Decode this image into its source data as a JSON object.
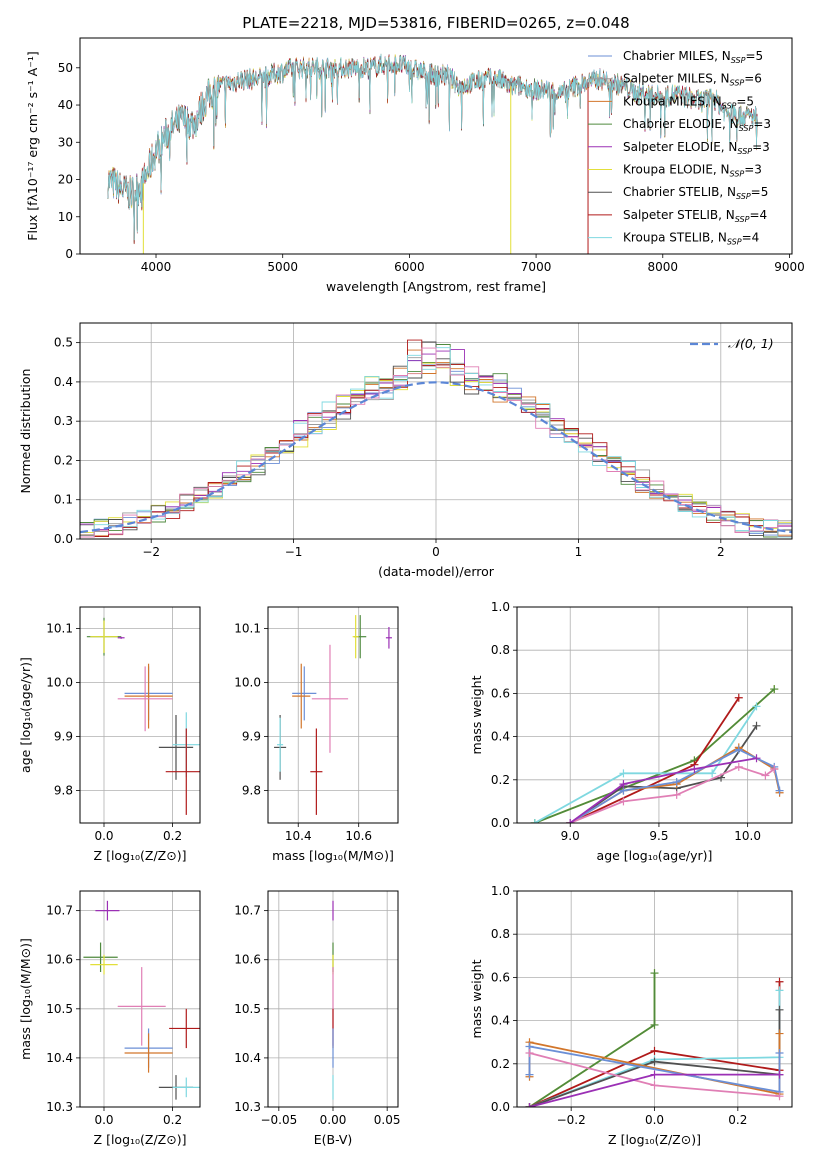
{
  "colors": {
    "chabrier_miles": "#6b8fd6",
    "salpeter_miles": "#9a9a9a",
    "kroupa_miles": "#d2762b",
    "chabrier_elodie": "#4f8a3e",
    "salpeter_elodie": "#9b30b5",
    "kroupa_elodie": "#e2df3a",
    "chabrier_stelib": "#505050",
    "salpeter_stelib": "#b01a1a",
    "kroupa_stelib": "#7fd8e0",
    "pink": "#e07fb5",
    "normal": "#5b86d6"
  },
  "chart_data": [
    {
      "id": "spectrum",
      "type": "line",
      "title": "PLATE=2218, MJD=53816, FIBERID=0265, z=0.048",
      "xlabel": "wavelength [Angstrom, rest frame]",
      "ylabel": "Flux [fλ10⁻¹⁷ erg cm⁻² s⁻¹ A⁻¹]",
      "xlim": [
        3400,
        9020
      ],
      "ylim": [
        0,
        58
      ],
      "xticks": [
        4000,
        5000,
        6000,
        7000,
        8000,
        9000
      ],
      "yticks": [
        0,
        10,
        20,
        30,
        40,
        50
      ],
      "legend_position": "upper right",
      "series": [
        {
          "name": "Chabrier MILES, N",
          "sub": "SSP",
          "n": "=5",
          "color_key": "chabrier_miles"
        },
        {
          "name": "Salpeter MILES, N",
          "sub": "SSP",
          "n": "=6",
          "color_key": "salpeter_miles"
        },
        {
          "name": "Kroupa MILES, N",
          "sub": "SSP",
          "n": "=5",
          "color_key": "kroupa_miles"
        },
        {
          "name": "Chabrier ELODIE, N",
          "sub": "SSP",
          "n": "=3",
          "color_key": "chabrier_elodie"
        },
        {
          "name": "Salpeter ELODIE, N",
          "sub": "SSP",
          "n": "=3",
          "color_key": "salpeter_elodie"
        },
        {
          "name": "Kroupa ELODIE, N",
          "sub": "SSP",
          "n": "=3",
          "color_key": "kroupa_elodie"
        },
        {
          "name": "Chabrier STELIB, N",
          "sub": "SSP",
          "n": "=5",
          "color_key": "chabrier_stelib"
        },
        {
          "name": "Salpeter STELIB, N",
          "sub": "SSP",
          "n": "=4",
          "color_key": "salpeter_stelib"
        },
        {
          "name": "Kroupa STELIB, N",
          "sub": "SSP",
          "n": "=4",
          "color_key": "kroupa_stelib"
        }
      ],
      "continuum": [
        [
          3620,
          20
        ],
        [
          3700,
          18
        ],
        [
          3800,
          16
        ],
        [
          3900,
          19
        ],
        [
          4000,
          28
        ],
        [
          4100,
          33
        ],
        [
          4200,
          36
        ],
        [
          4300,
          35
        ],
        [
          4400,
          42
        ],
        [
          4500,
          45
        ],
        [
          4600,
          46
        ],
        [
          4700,
          47
        ],
        [
          4800,
          47
        ],
        [
          4900,
          48
        ],
        [
          5000,
          49
        ],
        [
          5100,
          50
        ],
        [
          5200,
          50
        ],
        [
          5300,
          50
        ],
        [
          5400,
          50
        ],
        [
          5500,
          50
        ],
        [
          5600,
          50
        ],
        [
          5700,
          50
        ],
        [
          5800,
          51
        ],
        [
          5900,
          51
        ],
        [
          6000,
          50
        ],
        [
          6100,
          49
        ],
        [
          6200,
          48
        ],
        [
          6300,
          48
        ],
        [
          6400,
          45
        ],
        [
          6500,
          46
        ],
        [
          6600,
          47
        ],
        [
          6700,
          47
        ],
        [
          6800,
          45
        ],
        [
          6900,
          45
        ],
        [
          7000,
          44
        ],
        [
          7100,
          44
        ],
        [
          7200,
          43
        ],
        [
          7300,
          45
        ],
        [
          7400,
          46
        ],
        [
          7500,
          47
        ],
        [
          7600,
          46
        ],
        [
          7700,
          45
        ],
        [
          7800,
          43
        ],
        [
          7900,
          43
        ],
        [
          8000,
          42
        ],
        [
          8100,
          43
        ],
        [
          8200,
          42
        ],
        [
          8300,
          41
        ],
        [
          8400,
          42
        ],
        [
          8500,
          38
        ],
        [
          8600,
          37
        ],
        [
          8750,
          37
        ]
      ],
      "dropouts": [
        {
          "x": 3900,
          "color_key": "kroupa_elodie"
        },
        {
          "x": 6800,
          "color_key": "kroupa_elodie"
        },
        {
          "x": 7410,
          "color_key": "salpeter_stelib"
        }
      ]
    },
    {
      "id": "residuals",
      "type": "histogram",
      "xlabel": "(data-model)/error",
      "ylabel": "Normed distribution",
      "xlim": [
        -2.5,
        2.5
      ],
      "ylim": [
        0,
        0.55
      ],
      "xticks": [
        -2,
        -1,
        0,
        1,
        2
      ],
      "yticks": [
        0.0,
        0.1,
        0.2,
        0.3,
        0.4,
        0.5
      ],
      "reference": {
        "label": "𝒩(0, 1)",
        "mean": 0,
        "sigma": 1,
        "color_key": "normal"
      },
      "series_colors": [
        "chabrier_miles",
        "salpeter_miles",
        "kroupa_miles",
        "chabrier_elodie",
        "salpeter_elodie",
        "kroupa_elodie",
        "chabrier_stelib",
        "salpeter_stelib",
        "kroupa_stelib",
        "pink"
      ]
    },
    {
      "id": "age_vs_z",
      "type": "errorbar",
      "xlabel": "Z [log₁₀(Z/Z⊙)]",
      "ylabel": "age  [log₁₀(age/yr)]",
      "xlim": [
        -0.07,
        0.28
      ],
      "ylim": [
        9.74,
        10.14
      ],
      "xticks": [
        0.0,
        0.2
      ],
      "yticks": [
        9.8,
        9.9,
        10.0,
        10.1
      ],
      "points": [
        {
          "x": 0.0,
          "y": 10.085,
          "xe": 0.05,
          "ye": 0.035,
          "color_key": "chabrier_elodie"
        },
        {
          "x": 0.0,
          "y": 10.085,
          "xe": 0.04,
          "ye": 0.03,
          "color_key": "kroupa_elodie"
        },
        {
          "x": 0.05,
          "y": 10.083,
          "xe": 0.01,
          "ye": 0.002,
          "color_key": "salpeter_elodie"
        },
        {
          "x": 0.13,
          "y": 9.98,
          "xe": 0.07,
          "ye": 0.05,
          "color_key": "chabrier_miles"
        },
        {
          "x": 0.13,
          "y": 9.975,
          "xe": 0.07,
          "ye": 0.06,
          "color_key": "kroupa_miles"
        },
        {
          "x": 0.12,
          "y": 9.97,
          "xe": 0.08,
          "ye": 0.06,
          "color_key": "pink"
        },
        {
          "x": 0.21,
          "y": 9.88,
          "xe": 0.05,
          "ye": 0.06,
          "color_key": "chabrier_stelib"
        },
        {
          "x": 0.24,
          "y": 9.885,
          "xe": 0.04,
          "ye": 0.06,
          "color_key": "kroupa_stelib"
        },
        {
          "x": 0.24,
          "y": 9.835,
          "xe": 0.06,
          "ye": 0.08,
          "color_key": "salpeter_stelib"
        }
      ]
    },
    {
      "id": "age_vs_mass",
      "type": "errorbar",
      "xlabel": "mass [log₁₀(M/M⊙)]",
      "ylabel": "",
      "xlim": [
        10.3,
        10.73
      ],
      "ylim": [
        9.74,
        10.14
      ],
      "xticks": [
        10.4,
        10.6
      ],
      "yticks": [
        9.8,
        9.9,
        10.0,
        10.1
      ],
      "points": [
        {
          "x": 10.605,
          "y": 10.085,
          "xe": 0.02,
          "ye": 0.04,
          "color_key": "chabrier_elodie"
        },
        {
          "x": 10.59,
          "y": 10.085,
          "xe": 0.01,
          "ye": 0.04,
          "color_key": "kroupa_elodie"
        },
        {
          "x": 10.7,
          "y": 10.083,
          "xe": 0.01,
          "ye": 0.02,
          "color_key": "salpeter_elodie"
        },
        {
          "x": 10.42,
          "y": 9.98,
          "xe": 0.04,
          "ye": 0.05,
          "color_key": "chabrier_miles"
        },
        {
          "x": 10.41,
          "y": 9.975,
          "xe": 0.03,
          "ye": 0.06,
          "color_key": "kroupa_miles"
        },
        {
          "x": 10.505,
          "y": 9.97,
          "xe": 0.06,
          "ye": 0.1,
          "color_key": "pink"
        },
        {
          "x": 10.34,
          "y": 9.88,
          "xe": 0.02,
          "ye": 0.06,
          "color_key": "chabrier_stelib"
        },
        {
          "x": 10.34,
          "y": 9.885,
          "xe": 0.01,
          "ye": 0.05,
          "color_key": "kroupa_stelib"
        },
        {
          "x": 10.46,
          "y": 9.835,
          "xe": 0.02,
          "ye": 0.08,
          "color_key": "salpeter_stelib"
        }
      ]
    },
    {
      "id": "weight_vs_age",
      "type": "line",
      "xlabel": "age  [log₁₀(age/yr)]",
      "ylabel": "mass weight",
      "xlim": [
        8.7,
        10.25
      ],
      "ylim": [
        0,
        1.0
      ],
      "xticks": [
        9.0,
        9.5,
        10.0
      ],
      "yticks": [
        0.0,
        0.2,
        0.4,
        0.6,
        0.8,
        1.0
      ],
      "series": [
        {
          "color_key": "kroupa_elodie",
          "x": [
            8.8,
            9.7,
            10.15
          ],
          "y": [
            0.0,
            0.29,
            0.62
          ]
        },
        {
          "color_key": "chabrier_elodie",
          "x": [
            8.8,
            9.7,
            10.15
          ],
          "y": [
            0.0,
            0.29,
            0.62
          ]
        },
        {
          "color_key": "salpeter_stelib",
          "x": [
            9.0,
            9.7,
            9.95
          ],
          "y": [
            0.0,
            0.27,
            0.58
          ]
        },
        {
          "color_key": "kroupa_stelib",
          "x": [
            8.8,
            9.3,
            9.8,
            10.05
          ],
          "y": [
            0.0,
            0.23,
            0.23,
            0.54
          ]
        },
        {
          "color_key": "chabrier_stelib",
          "x": [
            9.0,
            9.3,
            9.6,
            9.85,
            10.05
          ],
          "y": [
            0.0,
            0.17,
            0.16,
            0.21,
            0.45
          ]
        },
        {
          "color_key": "kroupa_miles",
          "x": [
            9.0,
            9.3,
            9.6,
            9.95,
            10.15,
            10.18
          ],
          "y": [
            0.0,
            0.15,
            0.18,
            0.35,
            0.25,
            0.14
          ]
        },
        {
          "color_key": "chabrier_miles",
          "x": [
            9.0,
            9.3,
            9.6,
            9.95,
            10.15,
            10.18
          ],
          "y": [
            0.0,
            0.15,
            0.19,
            0.34,
            0.26,
            0.15
          ]
        },
        {
          "color_key": "pink",
          "x": [
            9.0,
            9.3,
            9.6,
            9.95,
            10.1,
            10.15
          ],
          "y": [
            0.0,
            0.1,
            0.13,
            0.26,
            0.22,
            0.25
          ]
        },
        {
          "color_key": "salpeter_elodie",
          "x": [
            9.0,
            9.3,
            9.7,
            10.05
          ],
          "y": [
            0.0,
            0.18,
            0.25,
            0.3
          ]
        }
      ]
    },
    {
      "id": "mass_vs_z",
      "type": "errorbar",
      "xlabel": "Z [log₁₀(Z/Z⊙)]",
      "ylabel": "mass [log₁₀(M/M⊙)]",
      "xlim": [
        -0.07,
        0.28
      ],
      "ylim": [
        10.3,
        10.74
      ],
      "xticks": [
        0.0,
        0.2
      ],
      "yticks": [
        10.3,
        10.4,
        10.5,
        10.6,
        10.7
      ],
      "points": [
        {
          "x": 0.01,
          "y": 10.7,
          "xe": 0.035,
          "ye": 0.02,
          "color_key": "salpeter_elodie"
        },
        {
          "x": -0.01,
          "y": 10.605,
          "xe": 0.05,
          "ye": 0.03,
          "color_key": "chabrier_elodie"
        },
        {
          "x": 0.0,
          "y": 10.59,
          "xe": 0.04,
          "ye": 0.02,
          "color_key": "kroupa_elodie"
        },
        {
          "x": 0.11,
          "y": 10.505,
          "xe": 0.07,
          "ye": 0.08,
          "color_key": "pink"
        },
        {
          "x": 0.13,
          "y": 10.42,
          "xe": 0.07,
          "ye": 0.04,
          "color_key": "chabrier_miles"
        },
        {
          "x": 0.13,
          "y": 10.41,
          "xe": 0.07,
          "ye": 0.04,
          "color_key": "kroupa_miles"
        },
        {
          "x": 0.24,
          "y": 10.46,
          "xe": 0.05,
          "ye": 0.04,
          "color_key": "salpeter_stelib"
        },
        {
          "x": 0.21,
          "y": 10.34,
          "xe": 0.05,
          "ye": 0.025,
          "color_key": "chabrier_stelib"
        },
        {
          "x": 0.24,
          "y": 10.34,
          "xe": 0.04,
          "ye": 0.02,
          "color_key": "kroupa_stelib"
        }
      ]
    },
    {
      "id": "mass_vs_ebv",
      "type": "errorbar",
      "xlabel": "E(B-V)",
      "ylabel": "",
      "xlim": [
        -0.06,
        0.06
      ],
      "ylim": [
        10.3,
        10.74
      ],
      "xticks": [
        -0.05,
        0.0,
        0.05
      ],
      "xtick_labels": [
        "−0.05",
        "0.00",
        "0.05"
      ],
      "yticks": [
        10.3,
        10.4,
        10.5,
        10.6,
        10.7
      ],
      "points": [
        {
          "x": 0.0,
          "y": 10.7,
          "xe": 0.0,
          "ye": 0.02,
          "color_key": "salpeter_elodie"
        },
        {
          "x": 0.0,
          "y": 10.605,
          "xe": 0.0,
          "ye": 0.03,
          "color_key": "chabrier_elodie"
        },
        {
          "x": 0.0,
          "y": 10.59,
          "xe": 0.0,
          "ye": 0.02,
          "color_key": "kroupa_elodie"
        },
        {
          "x": 0.0,
          "y": 10.505,
          "xe": 0.0,
          "ye": 0.08,
          "color_key": "pink"
        },
        {
          "x": 0.0,
          "y": 10.46,
          "xe": 0.0,
          "ye": 0.04,
          "color_key": "salpeter_stelib"
        },
        {
          "x": 0.0,
          "y": 10.42,
          "xe": 0.0,
          "ye": 0.04,
          "color_key": "chabrier_miles"
        },
        {
          "x": 0.0,
          "y": 10.34,
          "xe": 0.0,
          "ye": 0.025,
          "color_key": "kroupa_stelib"
        }
      ]
    },
    {
      "id": "weight_vs_z",
      "type": "line",
      "xlabel": "Z [log₁₀(Z/Z⊙)]",
      "ylabel": "mass weight",
      "xlim": [
        -0.33,
        0.33
      ],
      "ylim": [
        0,
        1.0
      ],
      "xticks": [
        -0.2,
        0.0,
        0.2
      ],
      "xtick_labels": [
        "−0.2",
        "0.0",
        "0.2"
      ],
      "yticks": [
        0.0,
        0.2,
        0.4,
        0.6,
        0.8,
        1.0
      ],
      "series": [
        {
          "color_key": "kroupa_elodie",
          "x": [
            -0.3,
            0.0,
            0.0
          ],
          "y": [
            0.0,
            0.38,
            0.62
          ]
        },
        {
          "color_key": "chabrier_elodie",
          "x": [
            -0.3,
            0.0,
            0.0
          ],
          "y": [
            0.0,
            0.38,
            0.62
          ]
        },
        {
          "color_key": "salpeter_stelib",
          "x": [
            -0.3,
            0.0,
            0.3,
            0.3
          ],
          "y": [
            0.0,
            0.26,
            0.17,
            0.58
          ]
        },
        {
          "color_key": "kroupa_stelib",
          "x": [
            -0.3,
            0.0,
            0.3,
            0.3
          ],
          "y": [
            0.0,
            0.22,
            0.23,
            0.54
          ]
        },
        {
          "color_key": "chabrier_stelib",
          "x": [
            -0.3,
            0.0,
            0.3,
            0.3
          ],
          "y": [
            0.0,
            0.21,
            0.15,
            0.45
          ]
        },
        {
          "color_key": "kroupa_miles",
          "x": [
            -0.3,
            -0.3,
            0.3,
            0.3
          ],
          "y": [
            0.14,
            0.3,
            0.06,
            0.34
          ]
        },
        {
          "color_key": "chabrier_miles",
          "x": [
            -0.3,
            -0.3,
            0.3,
            0.3
          ],
          "y": [
            0.15,
            0.28,
            0.07,
            0.25
          ]
        },
        {
          "color_key": "pink",
          "x": [
            -0.3,
            0.0,
            0.3
          ],
          "y": [
            0.25,
            0.1,
            0.05
          ]
        },
        {
          "color_key": "salpeter_elodie",
          "x": [
            -0.3,
            0.0,
            0.3
          ],
          "y": [
            0.0,
            0.15,
            0.15
          ]
        }
      ]
    }
  ]
}
